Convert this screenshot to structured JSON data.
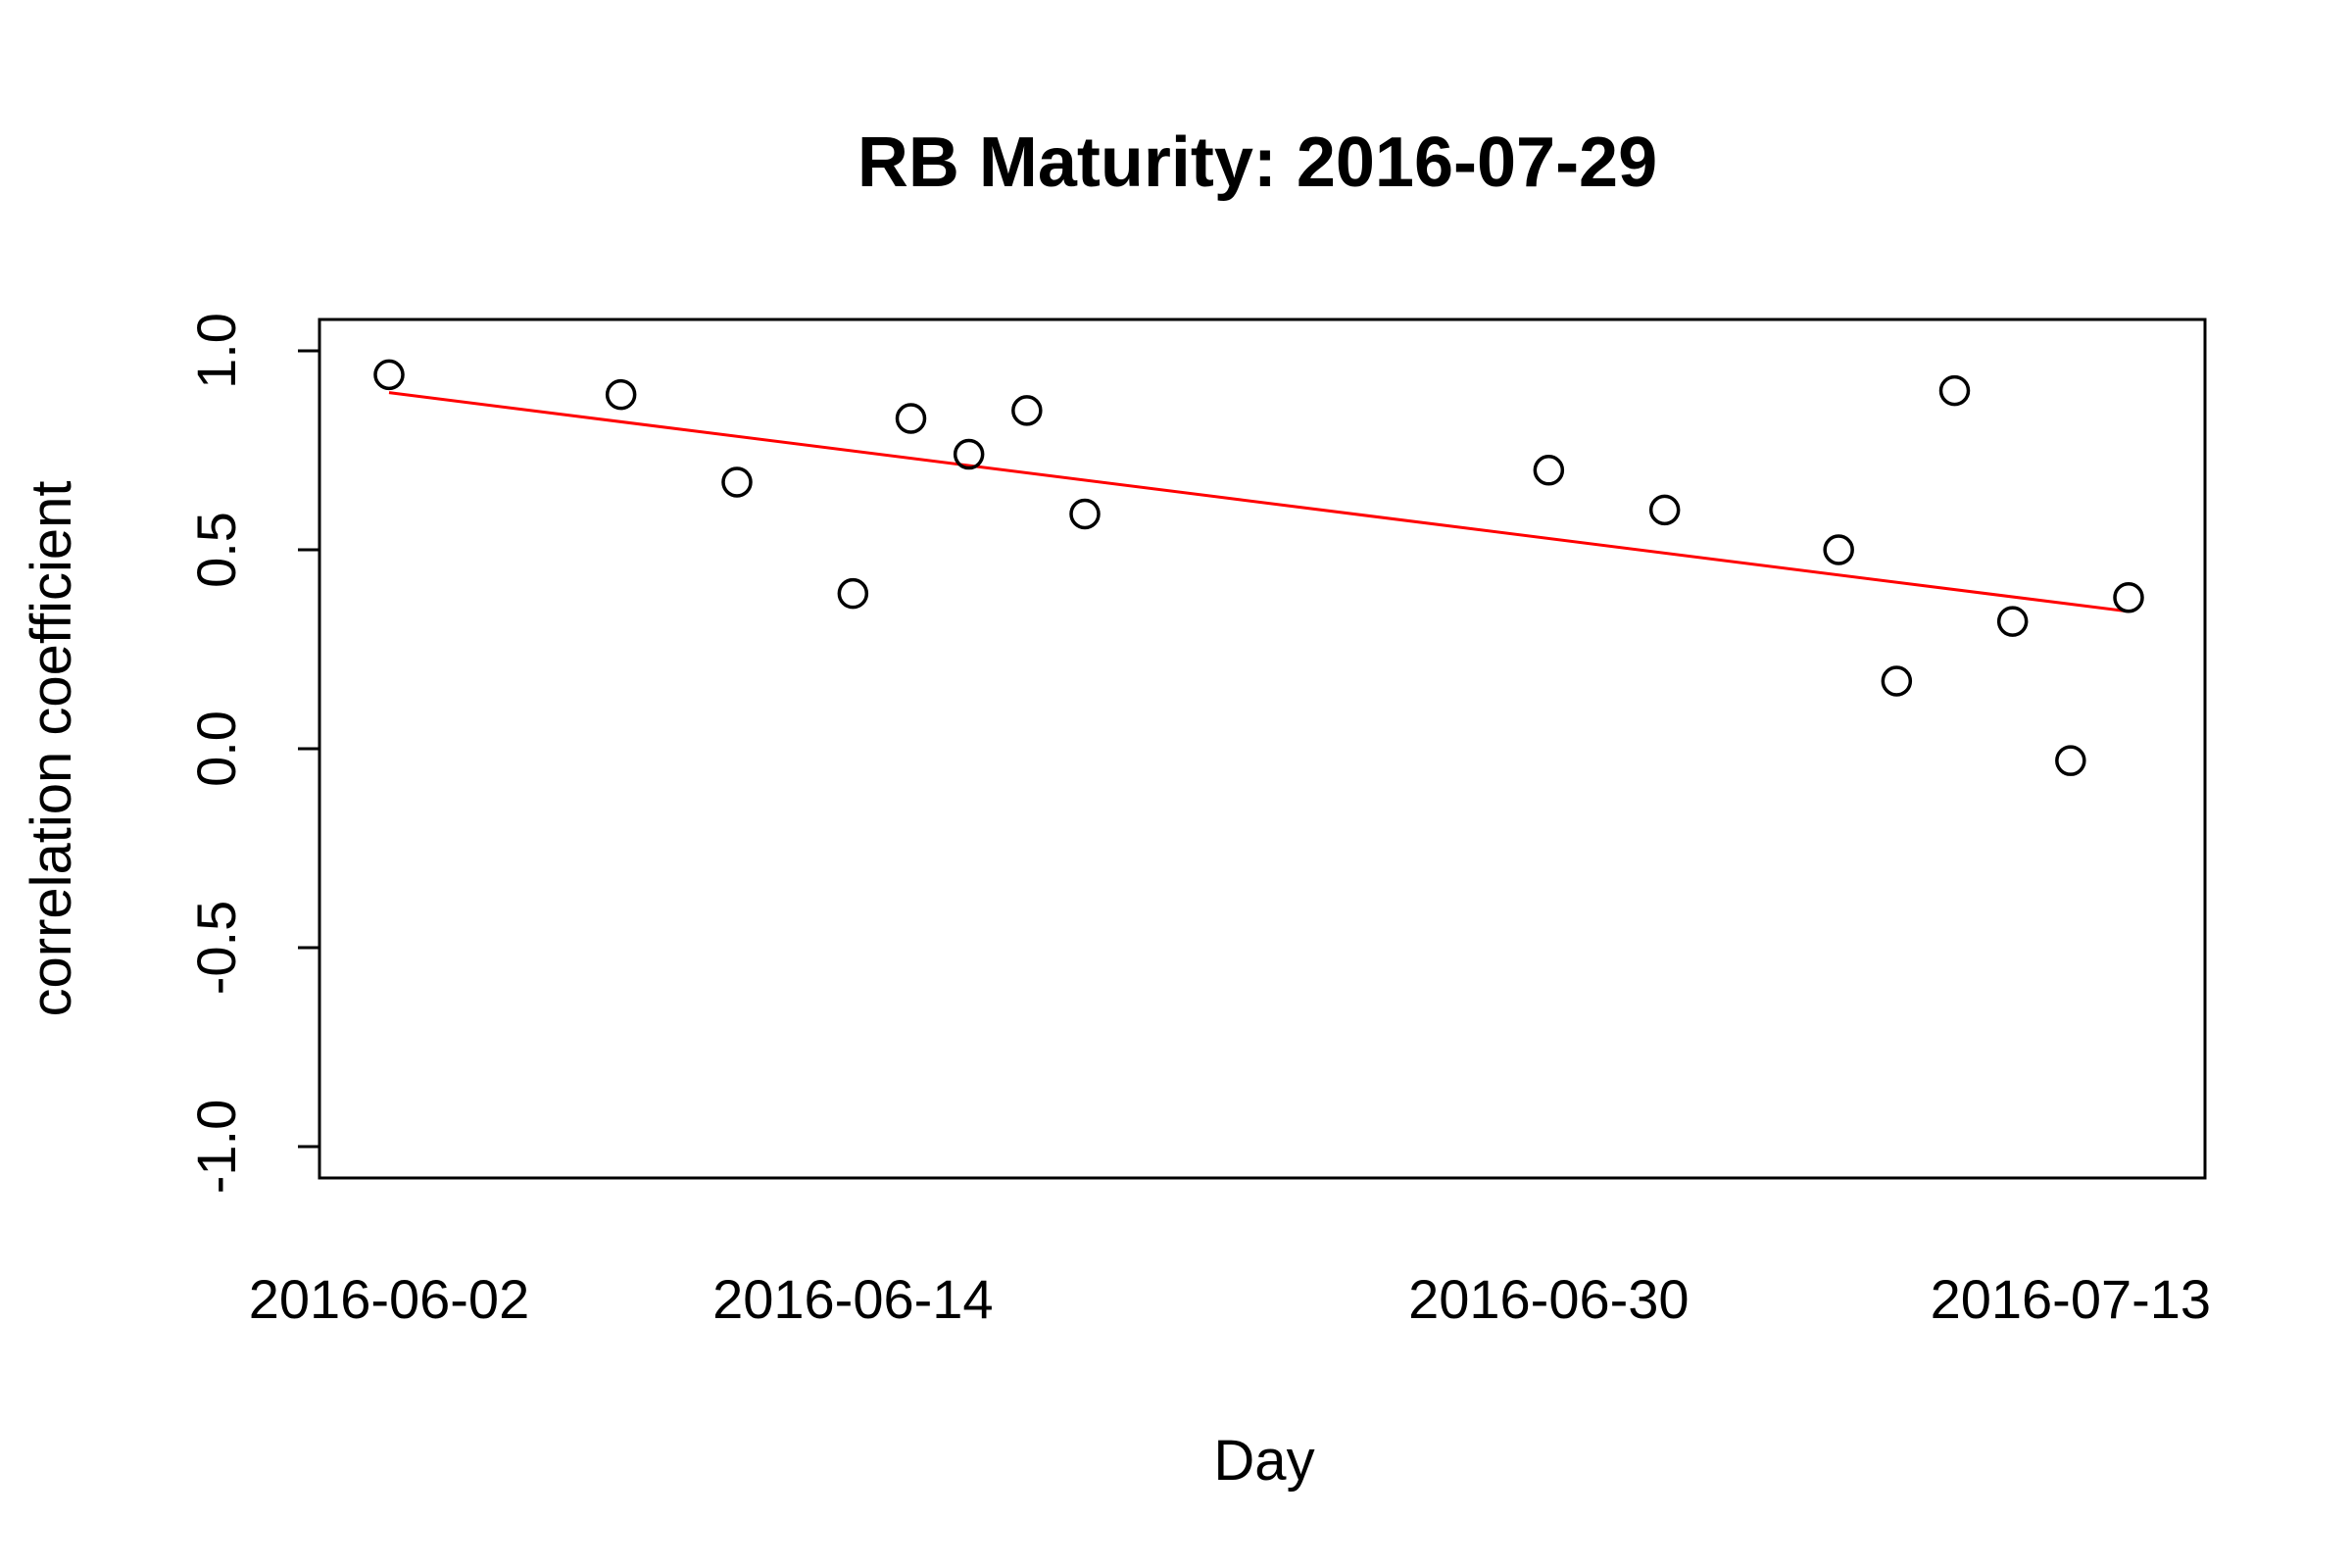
{
  "chart_data": {
    "type": "scatter",
    "title": "RB Maturity: 2016-07-29",
    "xlabel": "Day",
    "ylabel": "correlation coefficient",
    "ylim": [
      -1.0,
      1.0
    ],
    "y_ticks": [
      -1.0,
      -0.5,
      0.0,
      0.5,
      1.0
    ],
    "y_tick_labels": [
      "-1.0",
      "-0.5",
      "0.0",
      "0.5",
      "1.0"
    ],
    "x_tick_labels": [
      "2016-06-02",
      "2016-06-14",
      "2016-06-30",
      "2016-07-13"
    ],
    "x_ticks": [
      "2016-06-02",
      "2016-06-14",
      "2016-06-30",
      "2016-07-13"
    ],
    "x_type": "trading-day index",
    "grid": false,
    "legend": "none",
    "points": [
      {
        "x": "2016-06-02",
        "y": 0.94
      },
      {
        "x": "2016-06-08",
        "y": 0.89
      },
      {
        "x": "2016-06-12",
        "y": 0.67
      },
      {
        "x": "2016-06-14",
        "y": 0.39
      },
      {
        "x": "2016-06-15",
        "y": 0.83
      },
      {
        "x": "2016-06-16",
        "y": 0.74
      },
      {
        "x": "2016-06-17",
        "y": 0.85
      },
      {
        "x": "2016-06-20",
        "y": 0.59
      },
      {
        "x": "2016-06-30",
        "y": 0.7
      },
      {
        "x": "2016-07-04",
        "y": 0.6
      },
      {
        "x": "2016-07-07",
        "y": 0.5
      },
      {
        "x": "2016-07-08",
        "y": 0.17
      },
      {
        "x": "2016-07-11",
        "y": 0.9
      },
      {
        "x": "2016-07-12",
        "y": 0.32
      },
      {
        "x": "2016-07-13",
        "y": -0.03
      },
      {
        "x": "2016-07-14",
        "y": 0.38
      }
    ],
    "trend_line": {
      "color": "#ff0000",
      "start": {
        "x": "2016-06-02",
        "y": 0.895
      },
      "end": {
        "x": "2016-07-14",
        "y": 0.345
      }
    },
    "point_color": "#000000"
  }
}
